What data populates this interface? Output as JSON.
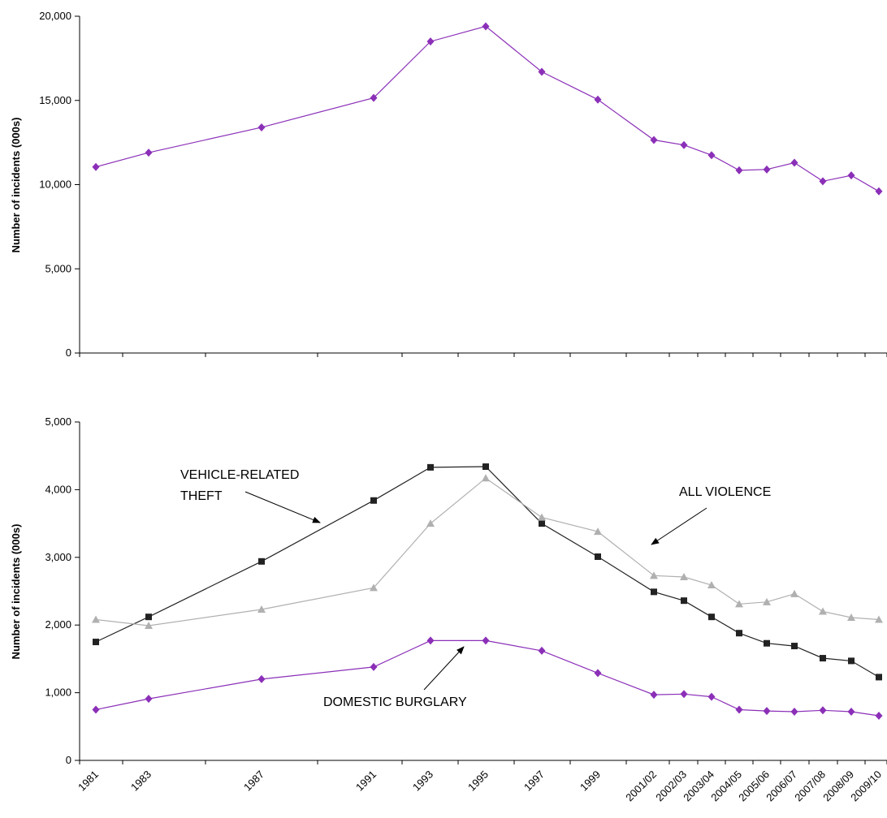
{
  "categories": [
    "1981",
    "1983",
    "1987",
    "1991",
    "1993",
    "1995",
    "1997",
    "1999",
    "2001/02",
    "2002/03",
    "2003/04",
    "2004/05",
    "2005/06",
    "2006/07",
    "2007/08",
    "2008/09",
    "2009/10"
  ],
  "colors": {
    "all_crime": "#8B2FB8",
    "vehicle": "#222222",
    "violence": "#B0B0B0",
    "burglary": "#8B2FB8"
  },
  "chart_data": [
    {
      "type": "line",
      "ylabel": "Number of incidents (000s)",
      "ylim": [
        0,
        20000
      ],
      "yticks": [
        "0",
        "5,000",
        "10,000",
        "15,000",
        "20,000"
      ],
      "series": [
        {
          "name": "",
          "marker": "diamond",
          "values": [
            11050,
            11900,
            13400,
            15150,
            18500,
            19400,
            16700,
            15050,
            12650,
            12350,
            11750,
            10850,
            10900,
            11300,
            10200,
            10550,
            9600
          ]
        }
      ]
    },
    {
      "type": "line",
      "ylabel": "Number of incidents (000s)",
      "ylim": [
        0,
        5000
      ],
      "yticks": [
        "0",
        "1,000",
        "2,000",
        "3,000",
        "4,000",
        "5,000"
      ],
      "series": [
        {
          "name": "VEHICLE-RELATED THEFT",
          "marker": "square",
          "values": [
            1750,
            2120,
            2940,
            3840,
            4330,
            4340,
            3500,
            3010,
            2490,
            2360,
            2120,
            1880,
            1730,
            1690,
            1510,
            1470,
            1230
          ]
        },
        {
          "name": "ALL VIOLENCE",
          "marker": "triangle",
          "values": [
            2080,
            1990,
            2230,
            2550,
            3500,
            4170,
            3590,
            3380,
            2730,
            2710,
            2590,
            2310,
            2340,
            2460,
            2200,
            2110,
            2080
          ]
        },
        {
          "name": "DOMESTIC BURGLARY",
          "marker": "diamond",
          "values": [
            750,
            910,
            1200,
            1380,
            1770,
            1770,
            1620,
            1290,
            970,
            980,
            940,
            750,
            730,
            720,
            740,
            720,
            660
          ]
        }
      ],
      "annotations": {
        "vehicle_line1": "VEHICLE-RELATED",
        "vehicle_line2": "THEFT",
        "violence": "ALL VIOLENCE",
        "burglary": "DOMESTIC BURGLARY"
      }
    }
  ]
}
